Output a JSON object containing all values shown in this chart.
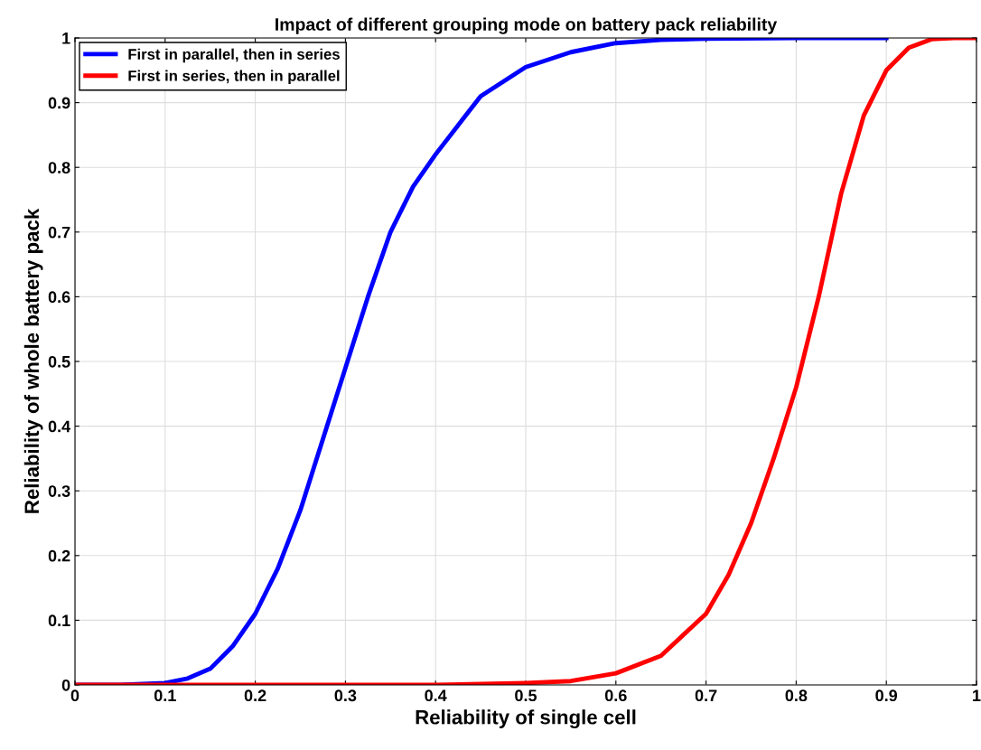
{
  "chart_data": {
    "type": "line",
    "title": "Impact of different grouping mode on battery pack reliability",
    "xlabel": "Reliability of single cell",
    "ylabel": "Reliability of whole battery pack",
    "series": [
      {
        "name": "First in parallel, then in series",
        "color": "#0000ff",
        "x": [
          0,
          0.05,
          0.1,
          0.125,
          0.15,
          0.175,
          0.2,
          0.225,
          0.25,
          0.275,
          0.3,
          0.325,
          0.35,
          0.375,
          0.4,
          0.45,
          0.5,
          0.55,
          0.6,
          0.65,
          0.7,
          0.8,
          0.9
        ],
        "values": [
          0,
          0,
          0.003,
          0.01,
          0.025,
          0.06,
          0.11,
          0.18,
          0.27,
          0.38,
          0.49,
          0.6,
          0.7,
          0.77,
          0.82,
          0.91,
          0.955,
          0.978,
          0.992,
          0.997,
          0.999,
          1,
          1
        ]
      },
      {
        "name": "First in series, then in parallel",
        "color": "#ff0000",
        "x": [
          0,
          0.1,
          0.2,
          0.3,
          0.4,
          0.5,
          0.55,
          0.6,
          0.65,
          0.7,
          0.725,
          0.75,
          0.775,
          0.8,
          0.825,
          0.85,
          0.875,
          0.9,
          0.925,
          0.95,
          0.975,
          1
        ],
        "values": [
          0,
          0,
          0,
          0,
          0,
          0.003,
          0.006,
          0.018,
          0.045,
          0.11,
          0.17,
          0.25,
          0.35,
          0.46,
          0.6,
          0.76,
          0.88,
          0.95,
          0.985,
          0.998,
          1,
          1
        ]
      }
    ],
    "xlim": [
      0,
      1
    ],
    "ylim": [
      0,
      1
    ],
    "xticks": [
      0,
      0.1,
      0.2,
      0.3,
      0.4,
      0.5,
      0.6,
      0.7,
      0.8,
      0.9,
      1
    ],
    "yticks": [
      0,
      0.1,
      0.2,
      0.3,
      0.4,
      0.5,
      0.6,
      0.7,
      0.8,
      0.9,
      1
    ],
    "grid": true,
    "legend": "top left",
    "marker": "none",
    "line_style": "solid"
  }
}
